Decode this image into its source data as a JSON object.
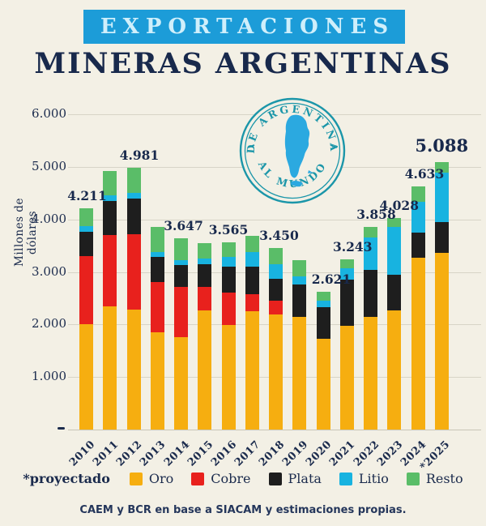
{
  "header": {
    "banner": "EXPORTACIONES",
    "subtitle": "MINERAS ARGENTINAS"
  },
  "stamp": {
    "top_text": "DE ARGENTINA",
    "bottom_text": "AL MUNDO"
  },
  "chart_data": {
    "type": "bar",
    "stacked": true,
    "title": "Exportaciones mineras argentinas",
    "ylabel": "Millones de dólares",
    "xlabel": "",
    "ylim": [
      0,
      6000
    ],
    "grid": true,
    "yticks": [
      1000,
      2000,
      3000,
      4000,
      5000,
      6000
    ],
    "ytick_labels": [
      "1.000",
      "2.000",
      "3.000",
      "4.000",
      "5.000",
      "6.000"
    ],
    "zero_tick_label": "-",
    "categories": [
      "2010",
      "2011",
      "2012",
      "2013",
      "2014",
      "2015",
      "2016",
      "2017",
      "2018",
      "2019",
      "2020",
      "2021",
      "2022",
      "2023",
      "2024",
      "*2025"
    ],
    "series": [
      {
        "name": "Oro",
        "color": "#F6AE10",
        "values": [
          2010,
          2350,
          2285,
          1845,
          1760,
          2270,
          1990,
          2250,
          2195,
          2140,
          1730,
          1980,
          2145,
          2260,
          3265,
          3360
        ]
      },
      {
        "name": "Cobre",
        "color": "#E8211D",
        "values": [
          1295,
          1350,
          1425,
          965,
          950,
          450,
          620,
          330,
          255,
          0,
          0,
          0,
          0,
          0,
          0,
          0
        ]
      },
      {
        "name": "Plata",
        "color": "#1E1E1E",
        "values": [
          460,
          650,
          690,
          470,
          420,
          430,
          490,
          520,
          420,
          620,
          600,
          870,
          890,
          680,
          490,
          592
        ]
      },
      {
        "name": "Litio",
        "color": "#18B3E0",
        "values": [
          110,
          110,
          110,
          100,
          100,
          100,
          180,
          280,
          280,
          160,
          116,
          220,
          620,
          910,
          575,
          933
        ]
      },
      {
        "name": "Resto",
        "color": "#5ABD68",
        "values": [
          336,
          460,
          471,
          470,
          417,
          295,
          285,
          310,
          300,
          310,
          175,
          173,
          203,
          178,
          303,
          203
        ]
      }
    ],
    "totals": [
      4211,
      4920,
      4981,
      3850,
      3647,
      3545,
      3565,
      3690,
      3450,
      3230,
      2621,
      3243,
      3858,
      4028,
      4633,
      5088
    ],
    "value_labels": [
      {
        "category": "2010",
        "text": "4.211"
      },
      {
        "category": "2012",
        "text": "4.981"
      },
      {
        "category": "2014",
        "text": "3.647"
      },
      {
        "category": "2016",
        "text": "3.565"
      },
      {
        "category": "2018",
        "text": "3.450"
      },
      {
        "category": "2020",
        "text": "2.621"
      },
      {
        "category": "2021",
        "text": "3.243"
      },
      {
        "category": "2022",
        "text": "3.858"
      },
      {
        "category": "2023",
        "text": "4.028"
      },
      {
        "category": "2024",
        "text": "4.633"
      },
      {
        "category": "*2025",
        "text": "5.088",
        "emphasis": true
      }
    ],
    "legend_position": "bottom"
  },
  "legend": {
    "note": "*proyectado",
    "items": [
      {
        "label": "Oro",
        "color": "#F6AE10"
      },
      {
        "label": "Cobre",
        "color": "#E8211D"
      },
      {
        "label": "Plata",
        "color": "#1E1E1E"
      },
      {
        "label": "Litio",
        "color": "#18B3E0"
      },
      {
        "label": "Resto",
        "color": "#5ABD68"
      }
    ]
  },
  "footer": {
    "source": "CAEM y BCR en base a SIACAM y estimaciones propias."
  },
  "colors": {
    "background": "#F3F0E5",
    "navy_text": "#1B2B4D",
    "banner_blue": "#1C9CD8",
    "banner_text": "#CFEFFB",
    "stamp_teal": "#1B96A9",
    "map_blue": "#2BA9E0",
    "gridline": "#D7D4C7"
  }
}
